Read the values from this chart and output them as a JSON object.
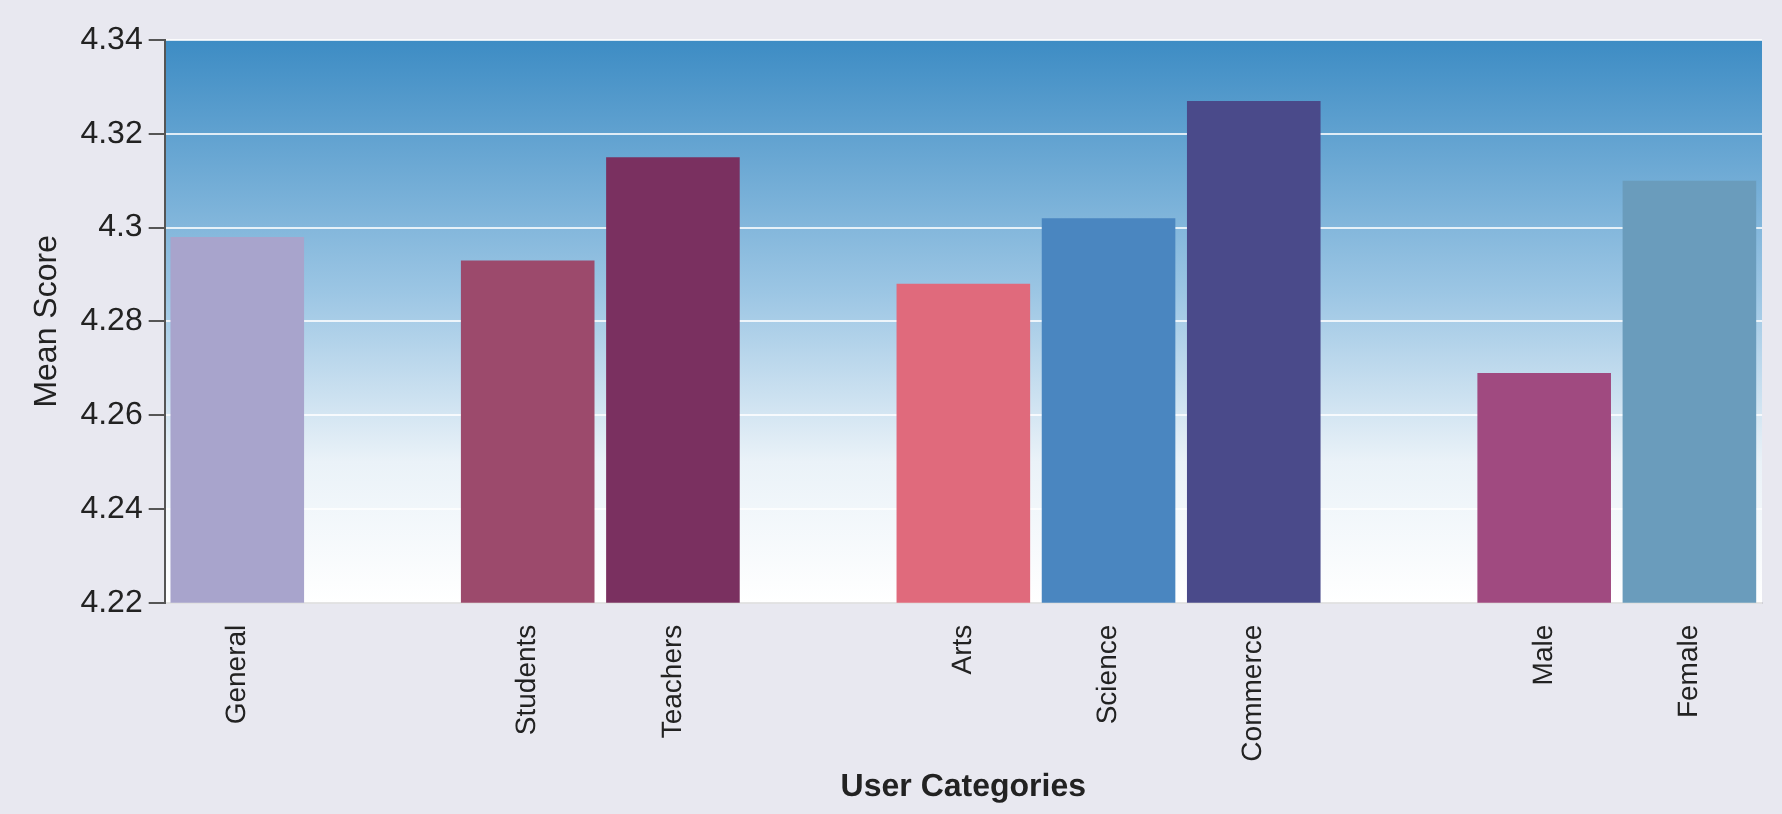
{
  "chart_data": {
    "type": "bar",
    "xlabel": "User Categories",
    "ylabel": "Mean Score",
    "categories": [
      "General",
      null,
      "Students",
      "Teachers",
      null,
      "Arts",
      "Science",
      "Commerce",
      null,
      "Male",
      "Female"
    ],
    "values": [
      4.298,
      null,
      4.293,
      4.315,
      null,
      4.288,
      4.302,
      4.327,
      null,
      4.269,
      4.31
    ],
    "colors": [
      "#a8a4cc",
      "#ffffff",
      "#9c4a6c",
      "#7a3060",
      "#ffffff",
      "#e06a7c",
      "#4a86c0",
      "#4a4a8a",
      "#ffffff",
      "#a04a80",
      "#6a9cbc"
    ],
    "ylim": [
      4.22,
      4.34
    ],
    "yticks": [
      4.22,
      4.24,
      4.26,
      4.28,
      4.3,
      4.32,
      4.34
    ],
    "grid": "y"
  }
}
